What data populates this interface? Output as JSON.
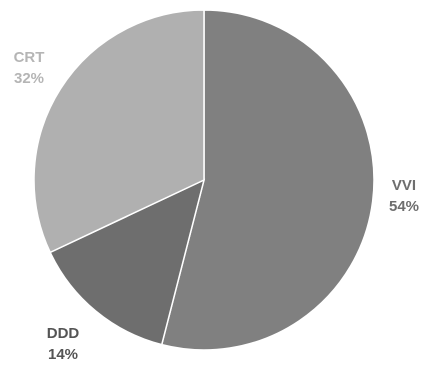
{
  "chart_data": {
    "type": "pie",
    "title": "",
    "slices": [
      {
        "label": "VVI",
        "value": 54,
        "value_label": "54%",
        "color": "#808080",
        "label_color": "#6e6e6e"
      },
      {
        "label": "DDD",
        "value": 14,
        "value_label": "14%",
        "color": "#6e6e6e",
        "label_color": "#555555"
      },
      {
        "label": "CRT",
        "value": 32,
        "value_label": "32%",
        "color": "#b0b0b0",
        "label_color": "#b5b5b5"
      }
    ],
    "start": "12 o'clock",
    "direction": "clockwise",
    "legend": "none",
    "data_labels": "category name and percentage"
  }
}
